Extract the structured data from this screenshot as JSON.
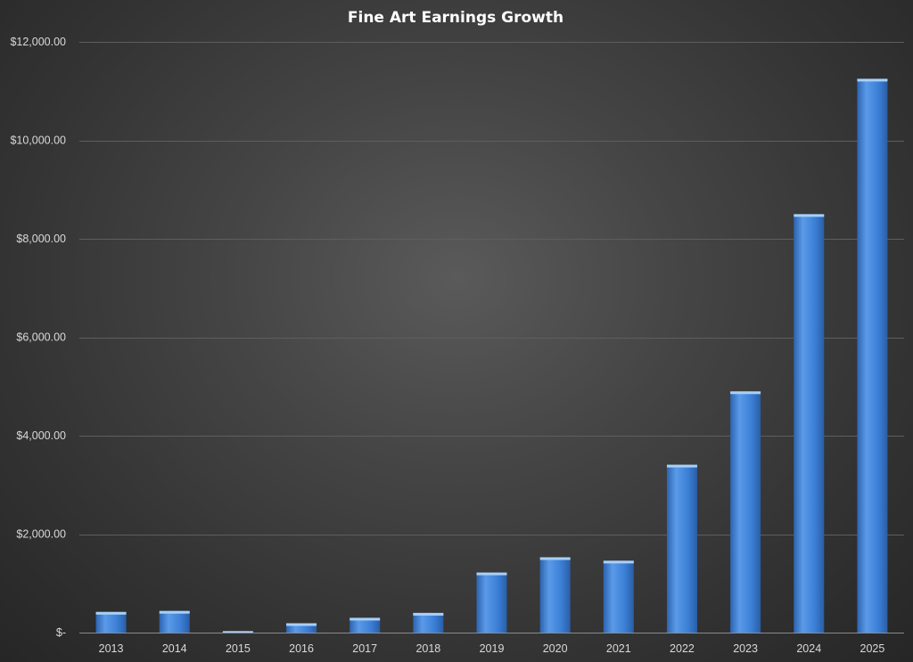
{
  "chart_data": {
    "type": "bar",
    "title": "Fine Art Earnings Growth",
    "xlabel": "",
    "ylabel": "",
    "categories": [
      "2013",
      "2014",
      "2015",
      "2016",
      "2017",
      "2018",
      "2019",
      "2020",
      "2021",
      "2022",
      "2023",
      "2024",
      "2025"
    ],
    "values": [
      420,
      440,
      30,
      190,
      300,
      400,
      1220,
      1530,
      1460,
      3410,
      4900,
      8500,
      11250
    ],
    "ylim": [
      0,
      12000
    ],
    "yticks": [
      0,
      2000,
      4000,
      6000,
      8000,
      10000,
      12000
    ],
    "ytick_labels": [
      "$-",
      "$2,000.00",
      "$4,000.00",
      "$6,000.00",
      "$8,000.00",
      "$10,000.00",
      "$12,000.00"
    ],
    "grid": true,
    "legend": "none",
    "colors": {
      "bar": "#3b7fd6",
      "bar_light": "#5a9ae8",
      "bar_dark": "#2c64b0",
      "bar_top": "#a9d0f7",
      "text": "#d9d9d9",
      "title": "#ffffff",
      "grid": "#5e5e5e"
    }
  }
}
